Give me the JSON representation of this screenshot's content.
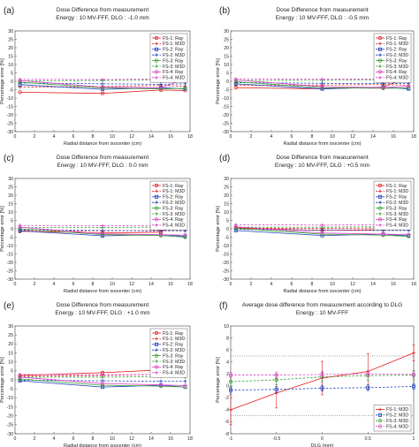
{
  "chart_data": [
    {
      "type": "line",
      "panel": "(a)",
      "title": "Dose Difference from measurement",
      "subtitle": "Energy : 10 MV-FFF,  DLG : -1.0 mm",
      "xlabel": "Radial distance from isocenter (cm)",
      "ylabel": "Percentage error [%]",
      "xlim": [
        0,
        18
      ],
      "ylim": [
        -30,
        30
      ],
      "xticks": [
        0,
        2,
        4,
        6,
        8,
        10,
        12,
        14,
        16,
        18
      ],
      "yticks": [
        -30,
        -25,
        -20,
        -15,
        -10,
        -5,
        0,
        5,
        10,
        15,
        20,
        25,
        30
      ],
      "grid": false,
      "legend_position": "top-right",
      "x": [
        0.5,
        9,
        15,
        17.5
      ],
      "series": [
        {
          "name": "FS-1: Ray",
          "color": "#e41a1c",
          "marker": "circle",
          "dash": "solid",
          "values": [
            -6.5,
            -7.2,
            -5.2,
            -5.5
          ]
        },
        {
          "name": "FS-1: M3D",
          "color": "#e41a1c",
          "marker": "plus",
          "dash": "dashed",
          "values": [
            -3.5,
            -3.2,
            -2.5,
            -3.0
          ]
        },
        {
          "name": "FS-2: Ray",
          "color": "#1f3fbf",
          "marker": "square",
          "dash": "solid",
          "values": [
            -2.0,
            -4.8,
            -3.8,
            -4.5
          ]
        },
        {
          "name": "FS-2: M3D",
          "color": "#1f3fbf",
          "marker": "plus",
          "dash": "dashed",
          "values": [
            -1.0,
            -1.5,
            -1.8,
            -1.5
          ]
        },
        {
          "name": "FS-3: Ray",
          "color": "#2ca02c",
          "marker": "circle",
          "dash": "solid",
          "values": [
            -0.5,
            -4.0,
            -4.5,
            -4.2
          ]
        },
        {
          "name": "FS-3: M3D",
          "color": "#2ca02c",
          "marker": "plus",
          "dash": "dashed",
          "values": [
            0.3,
            0.5,
            0.8,
            0.5
          ]
        },
        {
          "name": "FS-4: Ray",
          "color": "#e040c8",
          "marker": "circle",
          "dash": "solid",
          "values": [
            0.5,
            -3.5,
            -4.0,
            1.5
          ]
        },
        {
          "name": "FS-4: M3D",
          "color": "#e040c8",
          "marker": "plus",
          "dash": "dashed",
          "values": [
            1.2,
            1.0,
            1.3,
            1.2
          ]
        }
      ]
    },
    {
      "type": "line",
      "panel": "(b)",
      "title": "Dose Difference from measurement",
      "subtitle": "Energy : 10 MV-FFF,  DLG : -0.5 mm",
      "xlabel": "Radial distance from isocenter (cm)",
      "ylabel": "Percentage error [%]",
      "xlim": [
        0,
        18
      ],
      "ylim": [
        -30,
        30
      ],
      "xticks": [
        0,
        2,
        4,
        6,
        8,
        10,
        12,
        14,
        16,
        18
      ],
      "yticks": [
        -30,
        -25,
        -20,
        -15,
        -10,
        -5,
        0,
        5,
        10,
        15,
        20,
        25,
        30
      ],
      "grid": false,
      "legend_position": "top-right",
      "x": [
        0.5,
        9,
        15,
        17.5
      ],
      "series": [
        {
          "name": "FS-1: Ray",
          "color": "#e41a1c",
          "marker": "circle",
          "dash": "solid",
          "values": [
            -3.8,
            -4.5,
            -3.5,
            2.5
          ]
        },
        {
          "name": "FS-1: M3D",
          "color": "#e41a1c",
          "marker": "plus",
          "dash": "dashed",
          "values": [
            -2.5,
            -2.2,
            -2.0,
            -2.3
          ]
        },
        {
          "name": "FS-2: Ray",
          "color": "#1f3fbf",
          "marker": "square",
          "dash": "solid",
          "values": [
            -1.5,
            -4.5,
            -3.6,
            -4.5
          ]
        },
        {
          "name": "FS-2: M3D",
          "color": "#1f3fbf",
          "marker": "plus",
          "dash": "dashed",
          "values": [
            -0.8,
            -1.2,
            -1.4,
            -1.3
          ]
        },
        {
          "name": "FS-3: Ray",
          "color": "#2ca02c",
          "marker": "circle",
          "dash": "solid",
          "values": [
            -0.3,
            -3.8,
            -4.2,
            -4.0
          ]
        },
        {
          "name": "FS-3: M3D",
          "color": "#2ca02c",
          "marker": "plus",
          "dash": "dashed",
          "values": [
            0.5,
            0.6,
            0.8,
            0.6
          ]
        },
        {
          "name": "FS-4: Ray",
          "color": "#e040c8",
          "marker": "circle",
          "dash": "solid",
          "values": [
            0.8,
            -3.2,
            -3.8,
            -3.0
          ]
        },
        {
          "name": "FS-4: M3D",
          "color": "#e040c8",
          "marker": "plus",
          "dash": "dashed",
          "values": [
            1.5,
            1.2,
            1.5,
            1.4
          ]
        }
      ]
    },
    {
      "type": "line",
      "panel": "(c)",
      "title": "Dose Difference from measurement",
      "subtitle": "Energy : 10 MV-FFF,  DLG : 0.0 mm",
      "xlabel": "Radial distance from isocenter (cm)",
      "ylabel": "Percentage error [%]",
      "xlim": [
        0,
        18
      ],
      "ylim": [
        -30,
        30
      ],
      "xticks": [
        0,
        2,
        4,
        6,
        8,
        10,
        12,
        14,
        16,
        18
      ],
      "yticks": [
        -30,
        -25,
        -20,
        -15,
        -10,
        -5,
        0,
        5,
        10,
        15,
        20,
        25,
        30
      ],
      "grid": false,
      "legend_position": "top-right",
      "x": [
        0.5,
        9,
        15,
        17.5
      ],
      "series": [
        {
          "name": "FS-1: Ray",
          "color": "#e41a1c",
          "marker": "circle",
          "dash": "solid",
          "values": [
            -1.5,
            -2.5,
            -2.0,
            7.0
          ]
        },
        {
          "name": "FS-1: M3D",
          "color": "#e41a1c",
          "marker": "plus",
          "dash": "dashed",
          "values": [
            -1.0,
            -1.2,
            -1.0,
            -1.2
          ]
        },
        {
          "name": "FS-2: Ray",
          "color": "#1f3fbf",
          "marker": "square",
          "dash": "solid",
          "values": [
            -1.2,
            -4.2,
            -3.5,
            -4.5
          ]
        },
        {
          "name": "FS-2: M3D",
          "color": "#1f3fbf",
          "marker": "plus",
          "dash": "dashed",
          "values": [
            -0.5,
            -1.0,
            -1.2,
            -1.2
          ]
        },
        {
          "name": "FS-3: Ray",
          "color": "#2ca02c",
          "marker": "circle",
          "dash": "solid",
          "values": [
            0.0,
            -3.5,
            -4.0,
            -5.0
          ]
        },
        {
          "name": "FS-3: M3D",
          "color": "#2ca02c",
          "marker": "plus",
          "dash": "dashed",
          "values": [
            0.8,
            0.8,
            1.0,
            0.8
          ]
        },
        {
          "name": "FS-4: Ray",
          "color": "#e040c8",
          "marker": "circle",
          "dash": "solid",
          "values": [
            1.0,
            -3.0,
            -3.5,
            -3.8
          ]
        },
        {
          "name": "FS-4: M3D",
          "color": "#e040c8",
          "marker": "plus",
          "dash": "dashed",
          "values": [
            2.0,
            1.8,
            2.0,
            1.8
          ]
        }
      ]
    },
    {
      "type": "line",
      "panel": "(d)",
      "title": "Dose Difference from measurement",
      "subtitle": "Energy : 10 MV-FFF,  DLG : +0.5 mm",
      "xlabel": "Radial distance from isocenter (cm)",
      "ylabel": "Percentage error [%]",
      "xlim": [
        0,
        18
      ],
      "ylim": [
        -30,
        30
      ],
      "xticks": [
        0,
        2,
        4,
        6,
        8,
        10,
        12,
        14,
        16,
        18
      ],
      "yticks": [
        -30,
        -25,
        -20,
        -15,
        -10,
        -5,
        0,
        5,
        10,
        15,
        20,
        25,
        30
      ],
      "grid": false,
      "legend_position": "top-right",
      "x": [
        0.5,
        9,
        15,
        17.5
      ],
      "series": [
        {
          "name": "FS-1: Ray",
          "color": "#e41a1c",
          "marker": "circle",
          "dash": "solid",
          "values": [
            0.5,
            -1.0,
            -0.5,
            8.0
          ]
        },
        {
          "name": "FS-1: M3D",
          "color": "#e41a1c",
          "marker": "plus",
          "dash": "dashed",
          "values": [
            0.5,
            0.2,
            0.5,
            0.3
          ]
        },
        {
          "name": "FS-2: Ray",
          "color": "#1f3fbf",
          "marker": "square",
          "dash": "solid",
          "values": [
            -1.0,
            -4.0,
            -3.2,
            -4.2
          ]
        },
        {
          "name": "FS-2: M3D",
          "color": "#1f3fbf",
          "marker": "plus",
          "dash": "dashed",
          "values": [
            -0.3,
            -0.8,
            -1.0,
            -1.0
          ]
        },
        {
          "name": "FS-3: Ray",
          "color": "#2ca02c",
          "marker": "circle",
          "dash": "solid",
          "values": [
            0.3,
            -3.2,
            -3.8,
            -4.5
          ]
        },
        {
          "name": "FS-3: M3D",
          "color": "#2ca02c",
          "marker": "plus",
          "dash": "dashed",
          "values": [
            1.0,
            1.0,
            1.2,
            1.0
          ]
        },
        {
          "name": "FS-4: Ray",
          "color": "#e040c8",
          "marker": "circle",
          "dash": "solid",
          "values": [
            1.2,
            -2.5,
            -3.2,
            -3.5
          ]
        },
        {
          "name": "FS-4: M3D",
          "color": "#e040c8",
          "marker": "plus",
          "dash": "dashed",
          "values": [
            2.5,
            2.2,
            2.5,
            2.2
          ]
        }
      ]
    },
    {
      "type": "line",
      "panel": "(e)",
      "title": "Dose Difference from measurement",
      "subtitle": "Energy : 10 MV-FFF,  DLG : +1.0 mm",
      "xlabel": "Radial distance from isocenter (cm)",
      "ylabel": "Percentage error [%]",
      "xlim": [
        0,
        18
      ],
      "ylim": [
        -30,
        30
      ],
      "xticks": [
        0,
        2,
        4,
        6,
        8,
        10,
        12,
        14,
        16,
        18
      ],
      "yticks": [
        -30,
        -25,
        -20,
        -15,
        -10,
        -5,
        0,
        5,
        10,
        15,
        20,
        25,
        30
      ],
      "grid": false,
      "legend_position": "top-right",
      "x": [
        0.5,
        9,
        15,
        17.5
      ],
      "series": [
        {
          "name": "FS-1: Ray",
          "color": "#e41a1c",
          "marker": "circle",
          "dash": "solid",
          "values": [
            2.5,
            4.0,
            5.5,
            9.0
          ]
        },
        {
          "name": "FS-1: M3D",
          "color": "#e41a1c",
          "marker": "plus",
          "dash": "dashed",
          "values": [
            2.0,
            2.5,
            3.0,
            2.8
          ]
        },
        {
          "name": "FS-2: Ray",
          "color": "#1f3fbf",
          "marker": "square",
          "dash": "solid",
          "values": [
            -0.5,
            -4.0,
            -3.0,
            -4.0
          ]
        },
        {
          "name": "FS-2: M3D",
          "color": "#1f3fbf",
          "marker": "plus",
          "dash": "dashed",
          "values": [
            -0.2,
            -0.5,
            -0.8,
            -0.8
          ]
        },
        {
          "name": "FS-3: Ray",
          "color": "#2ca02c",
          "marker": "circle",
          "dash": "solid",
          "values": [
            0.5,
            -3.0,
            -3.5,
            -4.0
          ]
        },
        {
          "name": "FS-3: M3D",
          "color": "#2ca02c",
          "marker": "plus",
          "dash": "dashed",
          "values": [
            1.5,
            1.5,
            1.8,
            1.5
          ]
        },
        {
          "name": "FS-4: Ray",
          "color": "#e040c8",
          "marker": "circle",
          "dash": "solid",
          "values": [
            1.5,
            -2.0,
            -2.8,
            -3.2
          ]
        },
        {
          "name": "FS-4: M3D",
          "color": "#e040c8",
          "marker": "plus",
          "dash": "dashed",
          "values": [
            3.0,
            2.8,
            3.0,
            2.8
          ]
        }
      ]
    },
    {
      "type": "line",
      "panel": "(f)",
      "title": "Average dose difference from measurement according to DLG",
      "subtitle": "Energy : 10 MV-FFF",
      "xlabel": "DLG (mm)",
      "ylabel": "Percentage error [%]",
      "xlim": [
        -1,
        1
      ],
      "ylim": [
        -8,
        10
      ],
      "xticks": [
        -1,
        -0.5,
        0,
        0.5,
        1
      ],
      "yticks": [
        -8,
        -6,
        -4,
        -2,
        0,
        2,
        4,
        6,
        8,
        10
      ],
      "grid": false,
      "legend_position": "bottom-right",
      "reference_lines": [
        5,
        -5
      ],
      "x": [
        -1,
        -0.5,
        0,
        0.5,
        1
      ],
      "series": [
        {
          "name": "FS-1: M3D",
          "color": "#e41a1c",
          "marker": "plus",
          "dash": "solid",
          "values": [
            -4.0,
            -1.2,
            1.3,
            2.4,
            5.5
          ],
          "errors": [
            2.5,
            2.5,
            2.8,
            3.0,
            1.3
          ]
        },
        {
          "name": "FS-2: M3D",
          "color": "#1f3fbf",
          "marker": "square",
          "dash": "dashed",
          "values": [
            -0.7,
            -0.6,
            -0.4,
            -0.3,
            -0.1
          ],
          "errors": [
            0.5,
            0.5,
            0.5,
            0.5,
            0.5
          ]
        },
        {
          "name": "FS-3: M3D",
          "color": "#2ca02c",
          "marker": "circle",
          "dash": "dashed",
          "values": [
            0.7,
            1.0,
            1.5,
            1.7,
            1.8
          ],
          "errors": [
            0.8,
            0.8,
            0.8,
            0.8,
            0.8
          ]
        },
        {
          "name": "FS-4: M3D",
          "color": "#e040c8",
          "marker": "circle",
          "dash": "dashed",
          "values": [
            1.8,
            1.8,
            1.9,
            2.0,
            1.9
          ],
          "errors": [
            0.5,
            0.5,
            0.5,
            0.5,
            0.5
          ]
        }
      ]
    }
  ]
}
